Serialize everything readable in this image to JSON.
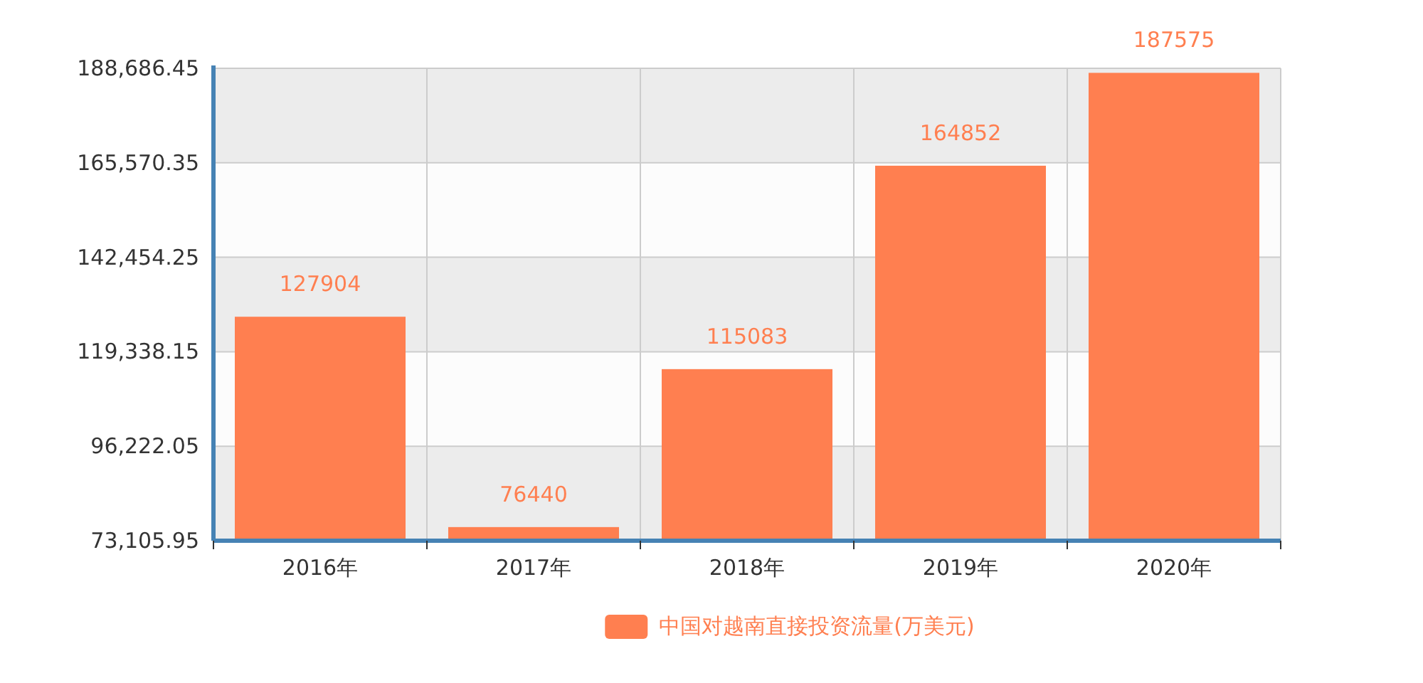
{
  "chart_data": {
    "type": "bar",
    "categories": [
      "2016年",
      "2017年",
      "2018年",
      "2019年",
      "2020年"
    ],
    "series": [
      {
        "name": "中国对越南直接投资流量(万美元)",
        "color": "#ff7f50",
        "values": [
          127904,
          76440,
          115083,
          164852,
          187575
        ]
      }
    ],
    "ylim": [
      73105.95,
      188686.45
    ],
    "yticks": [
      {
        "value": 73105.95,
        "label": "73,105.95"
      },
      {
        "value": 96222.05,
        "label": "96,222.05"
      },
      {
        "value": 119338.15,
        "label": "119,338.15"
      },
      {
        "value": 142454.25,
        "label": "142,454.25"
      },
      {
        "value": 165570.35,
        "label": "165,570.35"
      },
      {
        "value": 188686.45,
        "label": "188,686.45"
      }
    ],
    "data_labels": true,
    "grid": true,
    "legend": "bottom"
  }
}
